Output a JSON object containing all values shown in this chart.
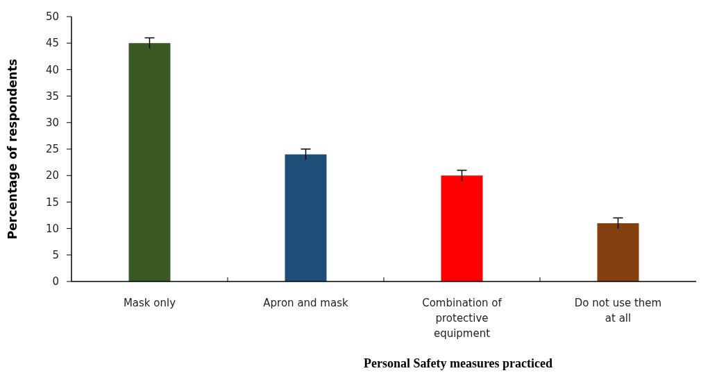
{
  "chart_data": {
    "type": "bar",
    "xlabel": "Personal Safety measures practiced",
    "ylabel": "Percentage of respondents",
    "categories": [
      "Mask only",
      "Apron and mask",
      "Combination of protective equipment",
      "Do not use them at all"
    ],
    "values": [
      45,
      24,
      20,
      11
    ],
    "colors": [
      "#3b5a23",
      "#1f4e79",
      "#ff0000",
      "#84400f"
    ],
    "errors": [
      1,
      1,
      1,
      1
    ],
    "ylim": [
      0,
      50
    ],
    "yticks": [
      0,
      5,
      10,
      15,
      20,
      25,
      30,
      35,
      40,
      45,
      50
    ]
  }
}
